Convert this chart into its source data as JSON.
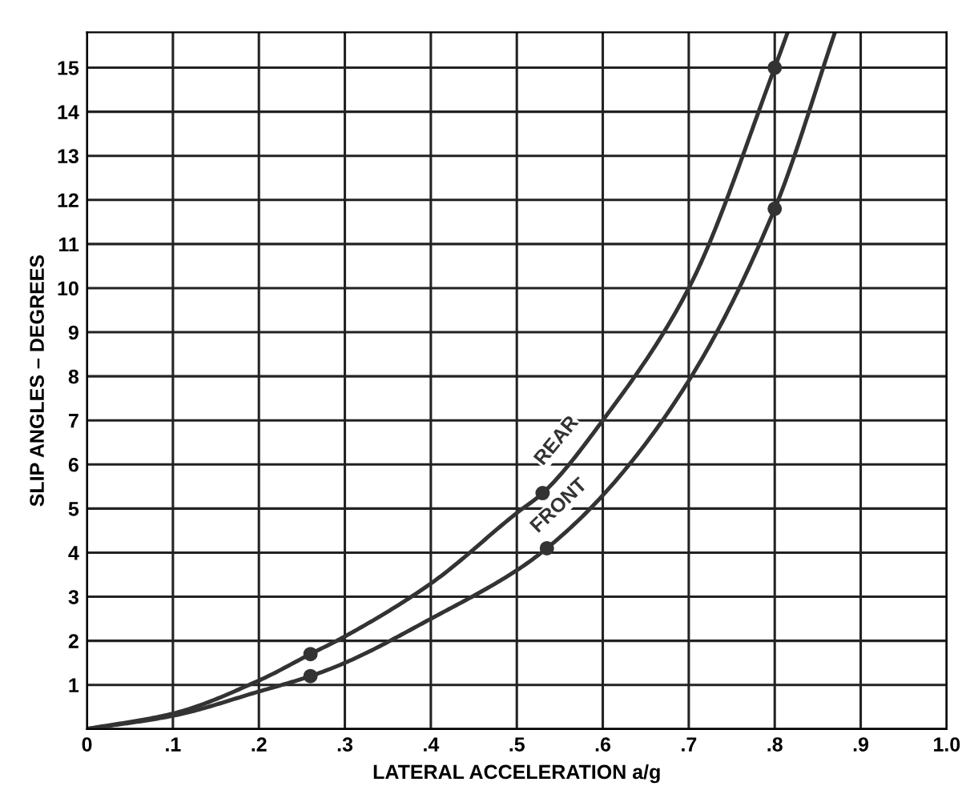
{
  "chart_data": {
    "type": "line",
    "xlabel": "LATERAL ACCELERATION a/g",
    "ylabel": "SLIP ANGLES – DEGREES",
    "xlim": [
      0,
      1.0
    ],
    "ylim": [
      0,
      15.8
    ],
    "xticks": [
      0,
      {
        "value": 0.1,
        "label": ".1"
      },
      {
        "value": 0.2,
        "label": ".2"
      },
      {
        "value": 0.3,
        "label": ".3"
      },
      {
        "value": 0.4,
        "label": ".4"
      },
      {
        "value": 0.5,
        "label": ".5"
      },
      {
        "value": 0.6,
        "label": ".6"
      },
      {
        "value": 0.7,
        "label": ".7"
      },
      {
        "value": 0.8,
        "label": ".8"
      },
      {
        "value": 0.9,
        "label": ".9"
      },
      {
        "value": 1.0,
        "label": "1.0"
      }
    ],
    "yticks": [
      {
        "value": 0,
        "label": null
      },
      1,
      2,
      3,
      4,
      5,
      6,
      7,
      8,
      9,
      10,
      11,
      12,
      13,
      14,
      15
    ],
    "grid": true,
    "legend": false,
    "line_style": "solid",
    "series": [
      {
        "name": "REAR",
        "color": "#333333",
        "x": [
          0,
          0.1,
          0.2,
          0.26,
          0.3,
          0.4,
          0.5,
          0.53,
          0.6,
          0.7,
          0.8,
          0.815
        ],
        "values": [
          0,
          0.35,
          1.1,
          1.7,
          2.1,
          3.3,
          4.9,
          5.35,
          7.0,
          10.0,
          15.0,
          15.8
        ]
      },
      {
        "name": "FRONT",
        "color": "#333333",
        "x": [
          0,
          0.1,
          0.2,
          0.26,
          0.3,
          0.4,
          0.5,
          0.535,
          0.6,
          0.7,
          0.8,
          0.87
        ],
        "values": [
          0,
          0.3,
          0.85,
          1.2,
          1.5,
          2.5,
          3.6,
          4.1,
          5.3,
          7.9,
          11.8,
          15.8
        ]
      },
      {
        "type": "scatter",
        "marker": "circle",
        "color": "#333333",
        "x": [
          0.26,
          0.53,
          0.8
        ],
        "values": [
          1.7,
          5.35,
          15.0
        ]
      },
      {
        "type": "scatter",
        "marker": "circle",
        "color": "#333333",
        "x": [
          0.26,
          0.535,
          0.8
        ],
        "values": [
          1.2,
          4.1,
          11.8
        ]
      }
    ]
  }
}
